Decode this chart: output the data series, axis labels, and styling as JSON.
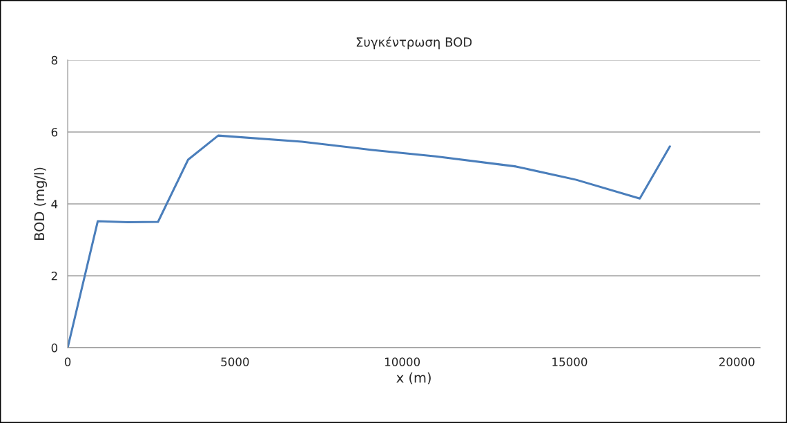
{
  "chart_data": {
    "type": "line",
    "title": "Συγκέντρωση BOD",
    "xlabel": "x (m)",
    "ylabel": "BOD (mg/l)",
    "x": [
      0,
      900,
      1800,
      2700,
      3600,
      4500,
      7000,
      9100,
      11000,
      13400,
      15200,
      17100,
      18000
    ],
    "series": [
      {
        "color": "#4a7ebb",
        "values": [
          0,
          3.52,
          3.49,
          3.5,
          5.23,
          5.9,
          5.73,
          5.5,
          5.32,
          5.04,
          4.67,
          4.15,
          5.6
        ]
      }
    ],
    "xlim": [
      0,
      20700
    ],
    "xticks": [
      0,
      5000,
      10000,
      15000,
      20000
    ],
    "ylim": [
      0,
      8
    ],
    "yticks": [
      0,
      2,
      4,
      6,
      8
    ],
    "grid": "y",
    "legend": false,
    "marker": "none",
    "line_style": "solid"
  }
}
